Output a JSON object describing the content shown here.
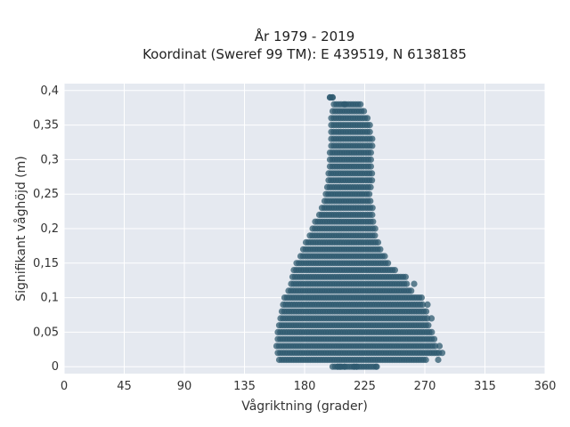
{
  "chart_data": {
    "type": "scatter",
    "title_line1": "År 1979 - 2019",
    "title_line2": "Koordinat (Sweref 99 TM): E 439519, N 6138185",
    "xlabel": "Vågriktning (grader)",
    "ylabel": "Signifikant våghöjd (m)",
    "xlim": [
      0,
      360
    ],
    "ylim": [
      -0.01,
      0.41
    ],
    "x_ticks": [
      0,
      45,
      90,
      135,
      180,
      225,
      270,
      315,
      360
    ],
    "x_tick_labels": [
      "0",
      "45",
      "90",
      "135",
      "180",
      "225",
      "270",
      "315",
      "360"
    ],
    "y_ticks": [
      0,
      0.05,
      0.1,
      0.15,
      0.2,
      0.25,
      0.3,
      0.35,
      0.4
    ],
    "y_tick_labels": [
      "0",
      "0,05",
      "0,1",
      "0,15",
      "0,2",
      "0,25",
      "0,3",
      "0,35",
      "0,4"
    ],
    "grid": true,
    "marker_color": "#2e5a6f",
    "background_color": "#e5e9f0",
    "direction_envelope": [
      {
        "y": 0.0,
        "xmin": 201,
        "xmax": 234
      },
      {
        "y": 0.01,
        "xmin": 161,
        "xmax": 272
      },
      {
        "y": 0.02,
        "xmin": 160,
        "xmax": 282
      },
      {
        "y": 0.03,
        "xmin": 159,
        "xmax": 279
      },
      {
        "y": 0.04,
        "xmin": 160,
        "xmax": 278
      },
      {
        "y": 0.05,
        "xmin": 160,
        "xmax": 276
      },
      {
        "y": 0.06,
        "xmin": 161,
        "xmax": 274
      },
      {
        "y": 0.07,
        "xmin": 162,
        "xmax": 273
      },
      {
        "y": 0.08,
        "xmin": 163,
        "xmax": 271
      },
      {
        "y": 0.09,
        "xmin": 164,
        "xmax": 270
      },
      {
        "y": 0.1,
        "xmin": 165,
        "xmax": 269
      },
      {
        "y": 0.11,
        "xmin": 168,
        "xmax": 261
      },
      {
        "y": 0.12,
        "xmin": 170,
        "xmax": 258
      },
      {
        "y": 0.13,
        "xmin": 171,
        "xmax": 256
      },
      {
        "y": 0.14,
        "xmin": 172,
        "xmax": 249
      },
      {
        "y": 0.15,
        "xmin": 174,
        "xmax": 244
      },
      {
        "y": 0.16,
        "xmin": 177,
        "xmax": 240
      },
      {
        "y": 0.17,
        "xmin": 179,
        "xmax": 238
      },
      {
        "y": 0.18,
        "xmin": 181,
        "xmax": 236
      },
      {
        "y": 0.19,
        "xmin": 184,
        "xmax": 234
      },
      {
        "y": 0.2,
        "xmin": 186,
        "xmax": 233
      },
      {
        "y": 0.21,
        "xmin": 188,
        "xmax": 232
      },
      {
        "y": 0.22,
        "xmin": 191,
        "xmax": 231
      },
      {
        "y": 0.23,
        "xmin": 193,
        "xmax": 231
      },
      {
        "y": 0.24,
        "xmin": 195,
        "xmax": 230
      },
      {
        "y": 0.25,
        "xmin": 196,
        "xmax": 230
      },
      {
        "y": 0.26,
        "xmin": 197,
        "xmax": 230
      },
      {
        "y": 0.27,
        "xmin": 198,
        "xmax": 231
      },
      {
        "y": 0.28,
        "xmin": 198,
        "xmax": 231
      },
      {
        "y": 0.29,
        "xmin": 199,
        "xmax": 231
      },
      {
        "y": 0.3,
        "xmin": 199,
        "xmax": 231
      },
      {
        "y": 0.31,
        "xmin": 199,
        "xmax": 231
      },
      {
        "y": 0.32,
        "xmin": 200,
        "xmax": 231
      },
      {
        "y": 0.33,
        "xmin": 200,
        "xmax": 231
      },
      {
        "y": 0.34,
        "xmin": 200,
        "xmax": 230
      },
      {
        "y": 0.35,
        "xmin": 200,
        "xmax": 230
      },
      {
        "y": 0.36,
        "xmin": 200,
        "xmax": 228
      },
      {
        "y": 0.37,
        "xmin": 201,
        "xmax": 226
      },
      {
        "y": 0.38,
        "xmin": 202,
        "xmax": 222
      },
      {
        "y": 0.39,
        "xmin": 199,
        "xmax": 201
      }
    ],
    "outlier_points": [
      {
        "x": 205,
        "y": 0.0
      },
      {
        "x": 207,
        "y": 0.0
      },
      {
        "x": 210,
        "y": 0.0
      },
      {
        "x": 217,
        "y": 0.0
      },
      {
        "x": 219,
        "y": 0.0
      },
      {
        "x": 234,
        "y": 0.0
      },
      {
        "x": 283,
        "y": 0.02
      },
      {
        "x": 281,
        "y": 0.03
      },
      {
        "x": 280,
        "y": 0.01
      },
      {
        "x": 275,
        "y": 0.07
      },
      {
        "x": 272,
        "y": 0.09
      },
      {
        "x": 262,
        "y": 0.12
      },
      {
        "x": 199,
        "y": 0.39
      },
      {
        "x": 201,
        "y": 0.39
      },
      {
        "x": 210,
        "y": 0.38
      }
    ],
    "direction_step": 1.8
  }
}
